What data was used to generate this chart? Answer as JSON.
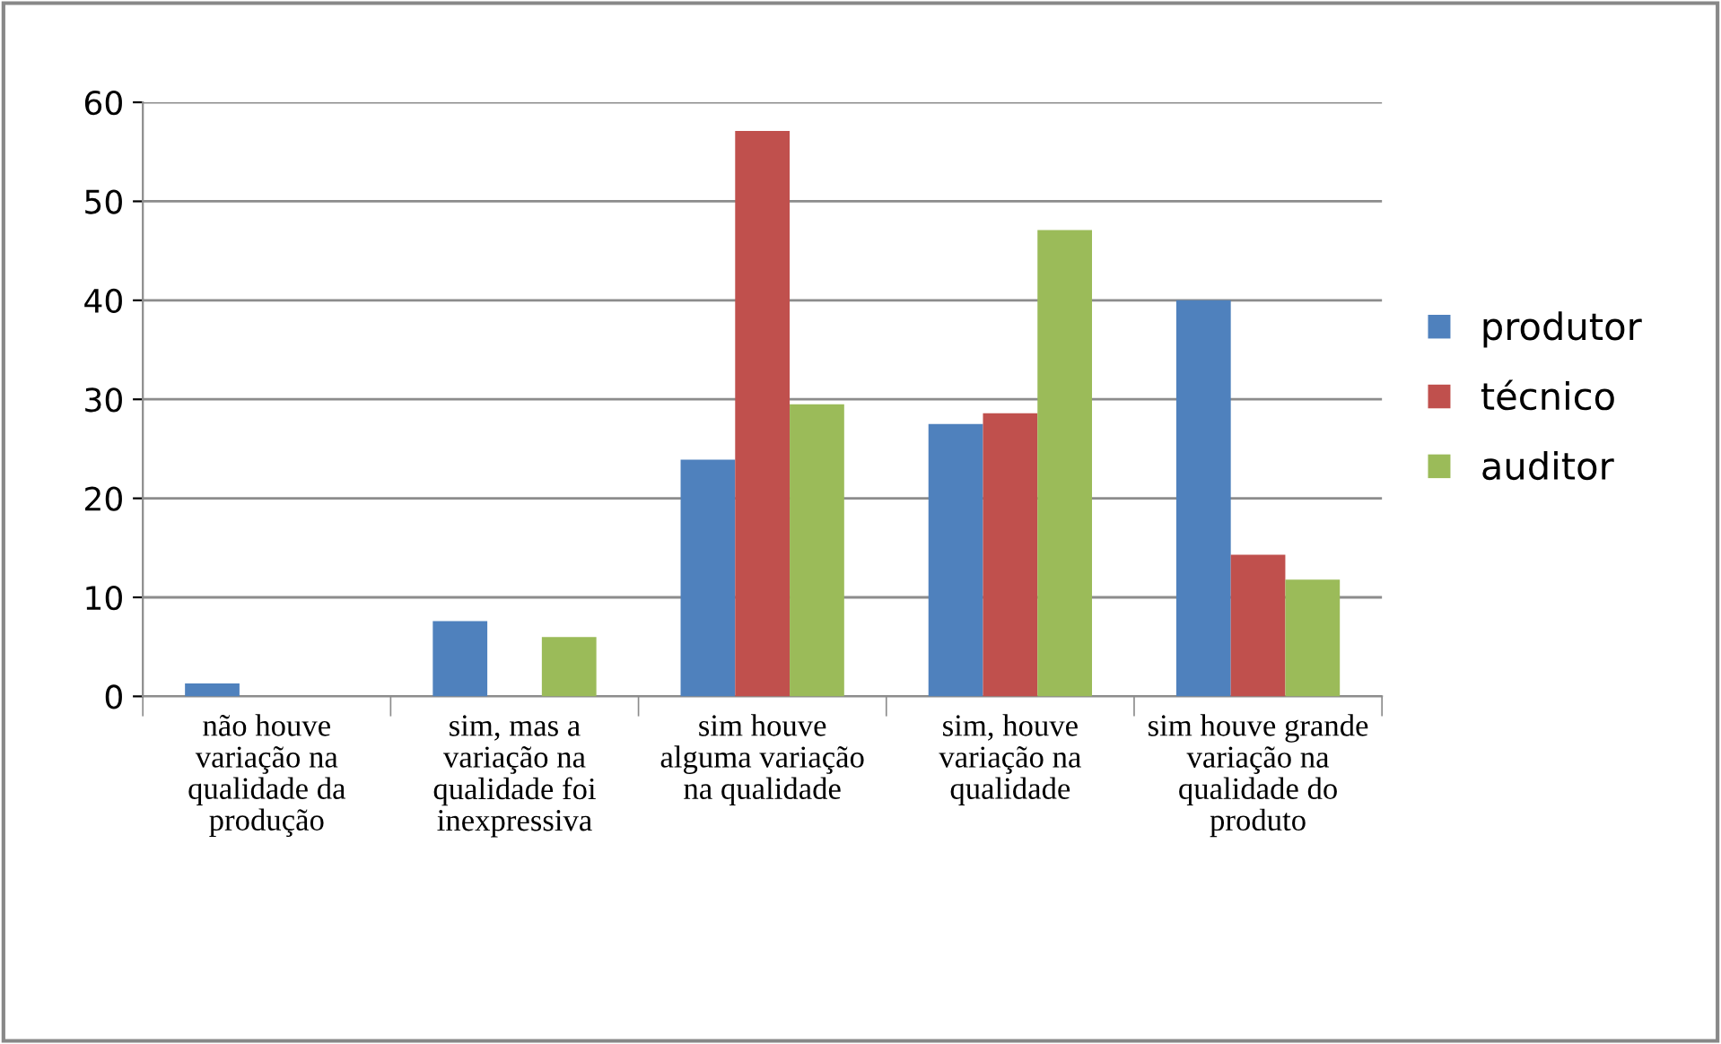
{
  "chart_data": {
    "type": "bar",
    "categories": [
      "não houve variação na qualidade da produção",
      "sim, mas a variação na qualidade foi inexpressiva",
      "sim houve alguma variação na qualidade",
      "sim, houve variação na qualidade",
      "sim houve grande variação na qualidade do produto"
    ],
    "series": [
      {
        "name": "produtor",
        "color": "#4f81bd",
        "values": [
          1.3,
          7.6,
          23.9,
          27.5,
          40
        ]
      },
      {
        "name": "técnico",
        "color": "#c0504d",
        "values": [
          0,
          0,
          57.1,
          28.6,
          14.3
        ]
      },
      {
        "name": "auditor",
        "color": "#9bbb59",
        "values": [
          0,
          6,
          29.5,
          47.1,
          11.8
        ]
      }
    ],
    "ylim": [
      0,
      60
    ],
    "yticks": [
      0,
      10,
      20,
      30,
      40,
      50,
      60
    ],
    "grid": "y",
    "legend": "right"
  }
}
